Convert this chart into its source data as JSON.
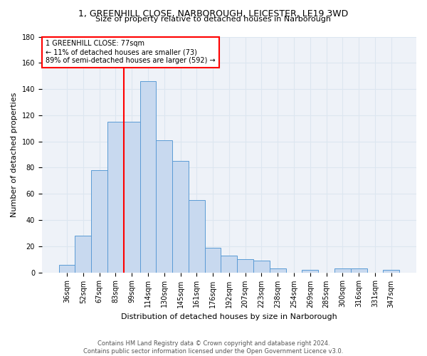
{
  "title1": "1, GREENHILL CLOSE, NARBOROUGH, LEICESTER, LE19 3WD",
  "title2": "Size of property relative to detached houses in Narborough",
  "xlabel": "Distribution of detached houses by size in Narborough",
  "ylabel": "Number of detached properties",
  "bar_labels": [
    "36sqm",
    "52sqm",
    "67sqm",
    "83sqm",
    "99sqm",
    "114sqm",
    "130sqm",
    "145sqm",
    "161sqm",
    "176sqm",
    "192sqm",
    "207sqm",
    "223sqm",
    "238sqm",
    "254sqm",
    "269sqm",
    "285sqm",
    "300sqm",
    "316sqm",
    "331sqm",
    "347sqm"
  ],
  "bar_values": [
    6,
    28,
    78,
    115,
    115,
    146,
    101,
    85,
    55,
    19,
    13,
    10,
    9,
    3,
    0,
    2,
    0,
    3,
    3,
    0,
    2
  ],
  "bar_color": "#c8d9ef",
  "bar_edge_color": "#5b9bd5",
  "vline_color": "red",
  "vline_pos": 3.5,
  "annotation_text": "1 GREENHILL CLOSE: 77sqm\n← 11% of detached houses are smaller (73)\n89% of semi-detached houses are larger (592) →",
  "annotation_box_color": "white",
  "annotation_box_edge_color": "red",
  "ylim": [
    0,
    180
  ],
  "yticks": [
    0,
    20,
    40,
    60,
    80,
    100,
    120,
    140,
    160,
    180
  ],
  "grid_color": "#dce6f0",
  "fig_bg_color": "#ffffff",
  "plot_bg_color": "#eef2f8",
  "footnote": "Contains HM Land Registry data © Crown copyright and database right 2024.\nContains public sector information licensed under the Open Government Licence v3.0.",
  "title1_fontsize": 9,
  "title2_fontsize": 8,
  "ylabel_fontsize": 8,
  "xlabel_fontsize": 8,
  "tick_fontsize": 7,
  "annot_fontsize": 7,
  "footnote_fontsize": 6
}
